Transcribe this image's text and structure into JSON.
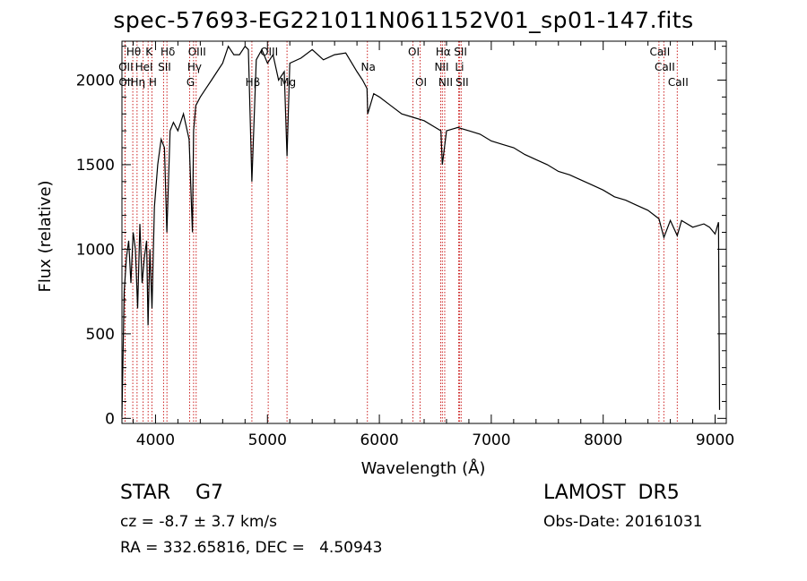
{
  "title": "spec-57693-EG221011N061152V01_sp01-147.fits",
  "info": {
    "class": "STAR    G7",
    "survey": "LAMOST  DR5",
    "cz": "cz = -8.7 ± 3.7 km/s",
    "obs_date": "Obs-Date: 20161031",
    "radec": "RA = 332.65816, DEC =   4.50943"
  },
  "chart_data": {
    "type": "line",
    "title": "spec-57693-EG221011N061152V01_sp01-147.fits",
    "xlabel": "Wavelength (Å)",
    "ylabel": "Flux (relative)",
    "xlim": [
      3700,
      9100
    ],
    "ylim": [
      -30,
      2230
    ],
    "xticks": [
      4000,
      5000,
      6000,
      7000,
      8000,
      9000
    ],
    "yticks": [
      0,
      500,
      1000,
      1500,
      2000
    ],
    "series": [
      {
        "x": [
          3700,
          3720,
          3740,
          3760,
          3780,
          3800,
          3820,
          3840,
          3860,
          3880,
          3900,
          3920,
          3933,
          3950,
          3968,
          3990,
          4020,
          4050,
          4080,
          4101,
          4130,
          4160,
          4200,
          4250,
          4300,
          4330,
          4340,
          4360,
          4400,
          4450,
          4500,
          4550,
          4600,
          4650,
          4700,
          4750,
          4800,
          4830,
          4861,
          4900,
          4950,
          5000,
          5050,
          5100,
          5150,
          5175,
          5200,
          5300,
          5400,
          5500,
          5600,
          5700,
          5800,
          5850,
          5890,
          5896,
          5950,
          6000,
          6100,
          6200,
          6300,
          6400,
          6500,
          6550,
          6563,
          6600,
          6700,
          6800,
          6900,
          7000,
          7100,
          7200,
          7300,
          7400,
          7500,
          7600,
          7700,
          7800,
          7900,
          8000,
          8100,
          8200,
          8300,
          8400,
          8498,
          8542,
          8600,
          8662,
          8700,
          8800,
          8900,
          8950,
          9000,
          9030,
          9040
        ],
        "values": [
          10,
          750,
          950,
          1050,
          800,
          1100,
          1000,
          650,
          1150,
          800,
          950,
          1050,
          550,
          1000,
          650,
          1250,
          1500,
          1650,
          1600,
          1100,
          1700,
          1750,
          1700,
          1800,
          1650,
          1100,
          1700,
          1850,
          1900,
          1950,
          2000,
          2050,
          2100,
          2200,
          2150,
          2150,
          2200,
          2180,
          1400,
          2120,
          2180,
          2100,
          2150,
          2000,
          2050,
          1550,
          2100,
          2130,
          2180,
          2120,
          2150,
          2160,
          2050,
          2000,
          1950,
          1800,
          1920,
          1900,
          1850,
          1800,
          1780,
          1760,
          1720,
          1700,
          1500,
          1700,
          1720,
          1700,
          1680,
          1640,
          1620,
          1600,
          1560,
          1530,
          1500,
          1460,
          1440,
          1410,
          1380,
          1350,
          1310,
          1290,
          1260,
          1230,
          1180,
          1070,
          1170,
          1080,
          1170,
          1130,
          1150,
          1130,
          1090,
          1160,
          50
        ]
      }
    ],
    "lines": [
      {
        "name": "Hθ",
        "wave": 3797,
        "row": 0
      },
      {
        "name": "K",
        "wave": 3934,
        "row": 0
      },
      {
        "name": "Hδ",
        "wave": 4102,
        "row": 0
      },
      {
        "name": "OIII",
        "wave": 4363,
        "row": 0
      },
      {
        "name": "OIII",
        "wave": 5007,
        "row": 0
      },
      {
        "name": "OI",
        "wave": 6300,
        "row": 0
      },
      {
        "name": "Hα",
        "wave": 6563,
        "row": 0
      },
      {
        "name": "SII",
        "wave": 6717,
        "row": 0
      },
      {
        "name": "CaII",
        "wave": 8498,
        "row": 0
      },
      {
        "name": "OII",
        "wave": 3727,
        "row": 1
      },
      {
        "name": "HeI",
        "wave": 3889,
        "row": 1
      },
      {
        "name": "SII",
        "wave": 4072,
        "row": 1
      },
      {
        "name": "Hγ",
        "wave": 4340,
        "row": 1
      },
      {
        "name": "Na",
        "wave": 5893,
        "row": 1
      },
      {
        "name": "NII",
        "wave": 6548,
        "row": 1
      },
      {
        "name": "Li",
        "wave": 6708,
        "row": 1
      },
      {
        "name": "CaII",
        "wave": 8542,
        "row": 1
      },
      {
        "name": "OII",
        "wave": 3729,
        "row": 2
      },
      {
        "name": "Hη",
        "wave": 3835,
        "row": 2
      },
      {
        "name": "H",
        "wave": 3968,
        "row": 2
      },
      {
        "name": "G",
        "wave": 4305,
        "row": 2
      },
      {
        "name": "Hβ",
        "wave": 4861,
        "row": 2
      },
      {
        "name": "Mg",
        "wave": 5175,
        "row": 2
      },
      {
        "name": "OI",
        "wave": 6364,
        "row": 2
      },
      {
        "name": "NII",
        "wave": 6584,
        "row": 2
      },
      {
        "name": "SII",
        "wave": 6731,
        "row": 2
      },
      {
        "name": "CaII",
        "wave": 8662,
        "row": 2
      }
    ]
  }
}
